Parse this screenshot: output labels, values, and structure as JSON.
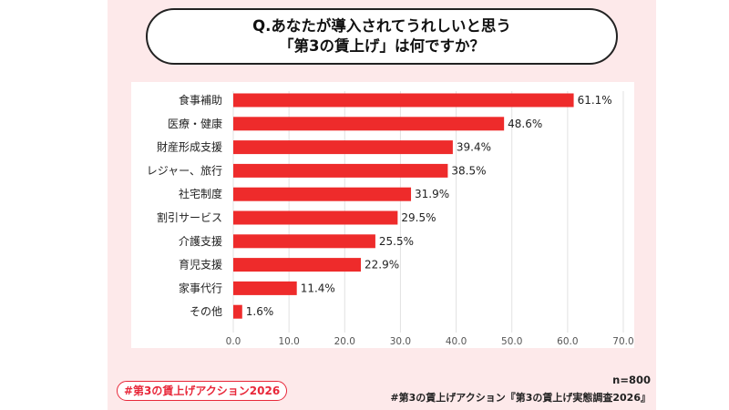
{
  "question": {
    "line1": "Q.あなたが導入されてうれしいと思う",
    "line2": "「第3の賃上げ」は何ですか？"
  },
  "chart_data": {
    "type": "bar",
    "orientation": "horizontal",
    "categories": [
      "食事補助",
      "医療・健康",
      "財産形成支援",
      "レジャー、旅行",
      "社宅制度",
      "割引サービス",
      "介護支援",
      "育児支援",
      "家事代行",
      "その他"
    ],
    "values": [
      61.1,
      48.6,
      39.4,
      38.5,
      31.9,
      29.5,
      25.5,
      22.9,
      11.4,
      1.6
    ],
    "value_labels": [
      "61.1%",
      "48.6%",
      "39.4%",
      "38.5%",
      "31.9%",
      "29.5%",
      "25.5%",
      "22.9%",
      "11.4%",
      "1.6%"
    ],
    "xlim": [
      0,
      70
    ],
    "x_ticks": [
      "0.0",
      "10.0",
      "20.0",
      "30.0",
      "40.0",
      "50.0",
      "60.0",
      "70.0"
    ],
    "grid": true,
    "title": "",
    "xlabel": "",
    "ylabel": ""
  },
  "colors": {
    "bar": "#ee2b2b",
    "accent": "#e8283a",
    "background": "#fde9ea",
    "grid": "#e2e2e2"
  },
  "footer": {
    "hashtag": "#第3の賃上げアクション2026",
    "sample_size": "n=800",
    "source": "#第3の賃上げアクション『第3の賃上げ実態調査2026』"
  }
}
